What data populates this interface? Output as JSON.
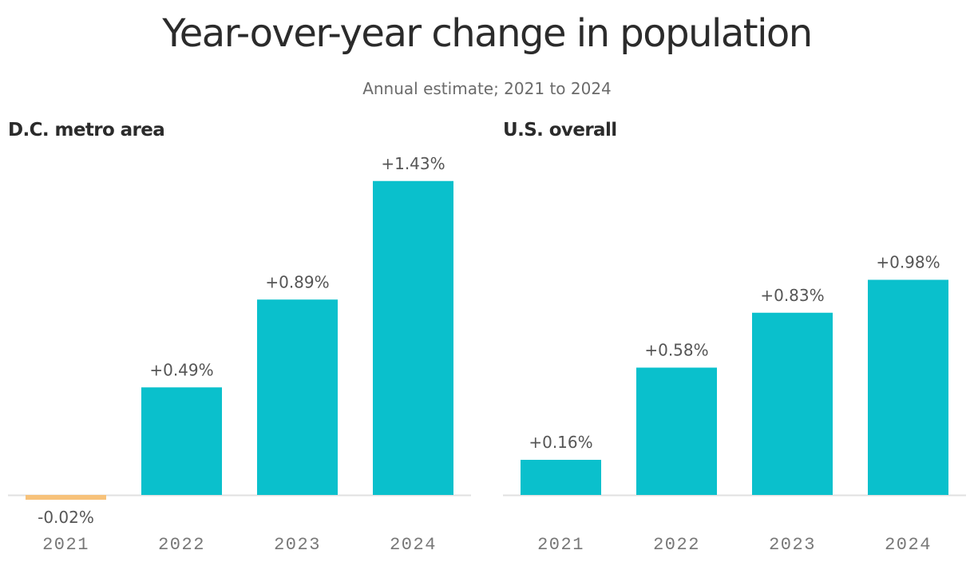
{
  "title": "Year-over-year change in population",
  "subtitle": "Annual estimate; 2021 to 2024",
  "colors": {
    "positive": "#0ac0cc",
    "negative": "#f7c27a",
    "baseline": "#e0e0e0"
  },
  "chart_data": [
    {
      "type": "bar",
      "title": "D.C. metro area",
      "categories": [
        "2021",
        "2022",
        "2023",
        "2024"
      ],
      "values": [
        -0.02,
        0.49,
        0.89,
        1.43
      ],
      "labels": [
        "-0.02%",
        "+0.49%",
        "+0.89%",
        "+1.43%"
      ],
      "ylim": [
        -0.02,
        1.43
      ],
      "grid": false,
      "legend": "none"
    },
    {
      "type": "bar",
      "title": "U.S. overall",
      "categories": [
        "2021",
        "2022",
        "2023",
        "2024"
      ],
      "values": [
        0.16,
        0.58,
        0.83,
        0.98
      ],
      "labels": [
        "+0.16%",
        "+0.58%",
        "+0.83%",
        "+0.98%"
      ],
      "ylim": [
        -0.02,
        1.43
      ],
      "grid": false,
      "legend": "none"
    }
  ]
}
